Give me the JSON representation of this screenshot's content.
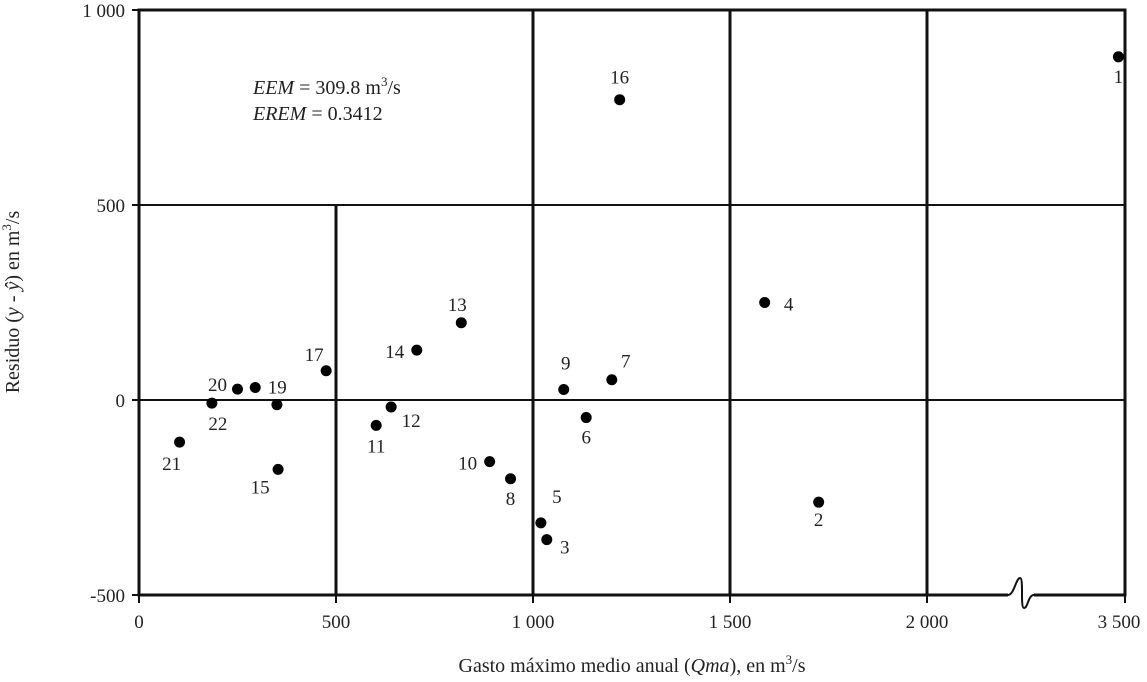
{
  "chart_data": {
    "type": "scatter",
    "xlabel": "Gasto máximo medio anual (Qma), en m³/s",
    "ylabel": "Residuo (y - ŷ) en m³/s",
    "x_tick_labels": [
      "0",
      "500",
      "1 000",
      "1 500",
      "2 000",
      "3 500"
    ],
    "y_tick_labels": [
      "1 000",
      "500",
      "0",
      "-500"
    ],
    "ylim": [
      -500,
      1000
    ],
    "axis_break": "x between 2 000 and 3 500",
    "grid": true,
    "annotations": [
      "EEM = 309.8 m³/s",
      "EREM = 0.3412"
    ],
    "points": [
      {
        "label": "1",
        "x": 3450,
        "y": 880
      },
      {
        "label": "2",
        "x": 1725,
        "y": -262
      },
      {
        "label": "3",
        "x": 1035,
        "y": -358
      },
      {
        "label": "4",
        "x": 1588,
        "y": 250
      },
      {
        "label": "5",
        "x": 1020,
        "y": -315
      },
      {
        "label": "6",
        "x": 1135,
        "y": -45
      },
      {
        "label": "7",
        "x": 1200,
        "y": 52
      },
      {
        "label": "8",
        "x": 943,
        "y": -202
      },
      {
        "label": "9",
        "x": 1078,
        "y": 27
      },
      {
        "label": "10",
        "x": 890,
        "y": -158
      },
      {
        "label": "11",
        "x": 602,
        "y": -65
      },
      {
        "label": "12",
        "x": 640,
        "y": -18
      },
      {
        "label": "13",
        "x": 818,
        "y": 198
      },
      {
        "label": "14",
        "x": 705,
        "y": 128
      },
      {
        "label": "15",
        "x": 353,
        "y": -178
      },
      {
        "label": "16",
        "x": 1220,
        "y": 770
      },
      {
        "label": "17",
        "x": 475,
        "y": 75
      },
      {
        "label": "19",
        "x": 295,
        "y": 32
      },
      {
        "label": "20",
        "x": 250,
        "y": 28
      },
      {
        "label": "21",
        "x": 103,
        "y": -108
      },
      {
        "label": "22",
        "x": 185,
        "y": -8
      },
      {
        "label": "",
        "x": 350,
        "y": -12
      }
    ]
  }
}
